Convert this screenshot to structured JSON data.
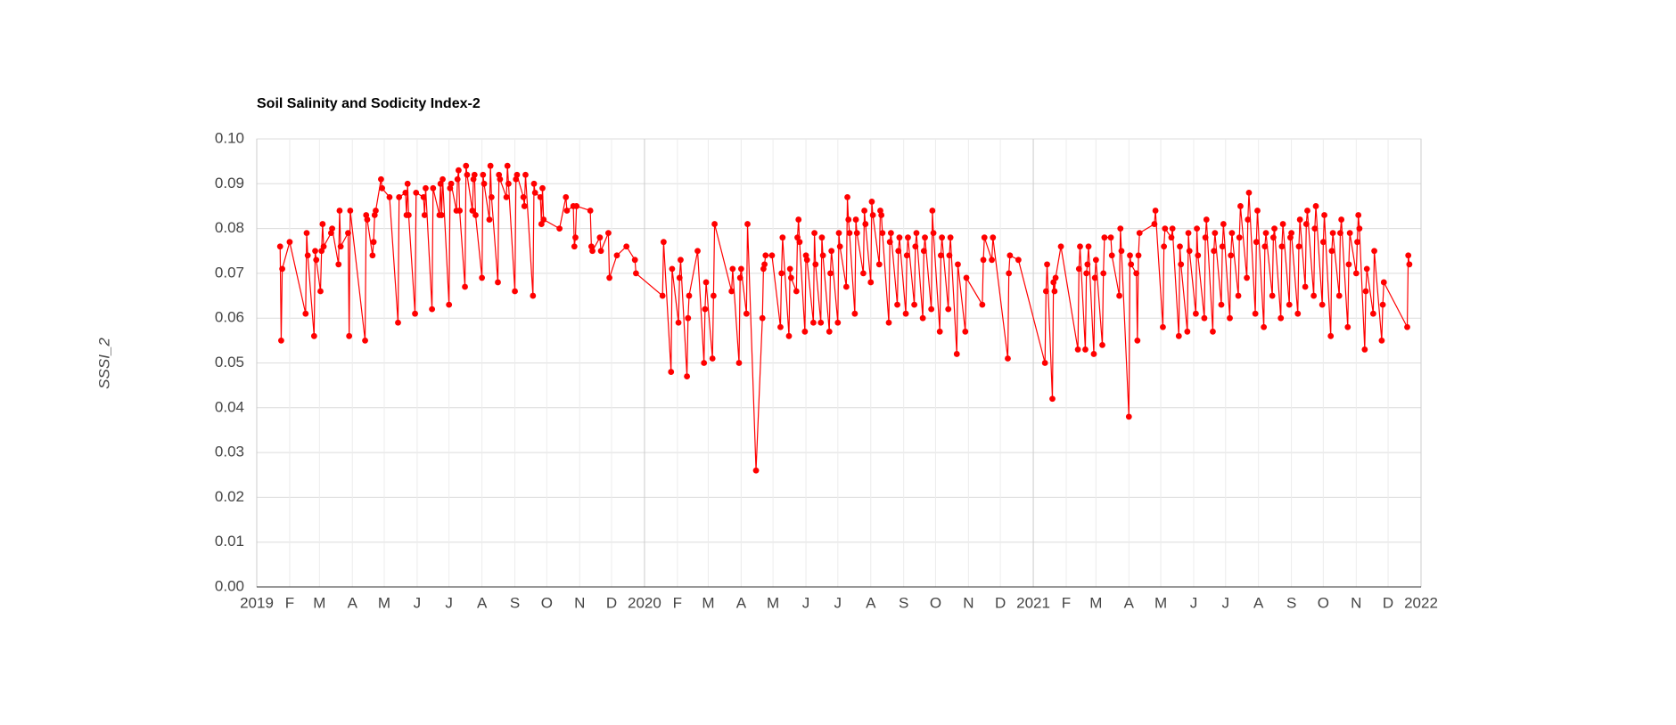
{
  "chart_data": {
    "type": "line",
    "title": "Soil Salinity and Sodicity Index-2",
    "ylabel": "SSSI_2",
    "color": "#ff0000",
    "grid": true,
    "xlim": [
      "2019-01-01",
      "2022-01-01"
    ],
    "xticks": [
      {
        "value": "2019-01-01",
        "label": "2019"
      },
      {
        "value": "2019-02-01",
        "label": "F"
      },
      {
        "value": "2019-03-01",
        "label": "M"
      },
      {
        "value": "2019-04-01",
        "label": "A"
      },
      {
        "value": "2019-05-01",
        "label": "M"
      },
      {
        "value": "2019-06-01",
        "label": "J"
      },
      {
        "value": "2019-07-01",
        "label": "J"
      },
      {
        "value": "2019-08-01",
        "label": "A"
      },
      {
        "value": "2019-09-01",
        "label": "S"
      },
      {
        "value": "2019-10-01",
        "label": "O"
      },
      {
        "value": "2019-11-01",
        "label": "N"
      },
      {
        "value": "2019-12-01",
        "label": "D"
      },
      {
        "value": "2020-01-01",
        "label": "2020"
      },
      {
        "value": "2020-02-01",
        "label": "F"
      },
      {
        "value": "2020-03-01",
        "label": "M"
      },
      {
        "value": "2020-04-01",
        "label": "A"
      },
      {
        "value": "2020-05-01",
        "label": "M"
      },
      {
        "value": "2020-06-01",
        "label": "J"
      },
      {
        "value": "2020-07-01",
        "label": "J"
      },
      {
        "value": "2020-08-01",
        "label": "A"
      },
      {
        "value": "2020-09-01",
        "label": "S"
      },
      {
        "value": "2020-10-01",
        "label": "O"
      },
      {
        "value": "2020-11-01",
        "label": "N"
      },
      {
        "value": "2020-12-01",
        "label": "D"
      },
      {
        "value": "2021-01-01",
        "label": "2021"
      },
      {
        "value": "2021-02-01",
        "label": "F"
      },
      {
        "value": "2021-03-01",
        "label": "M"
      },
      {
        "value": "2021-04-01",
        "label": "A"
      },
      {
        "value": "2021-05-01",
        "label": "M"
      },
      {
        "value": "2021-06-01",
        "label": "J"
      },
      {
        "value": "2021-07-01",
        "label": "J"
      },
      {
        "value": "2021-08-01",
        "label": "A"
      },
      {
        "value": "2021-09-01",
        "label": "S"
      },
      {
        "value": "2021-10-01",
        "label": "O"
      },
      {
        "value": "2021-11-01",
        "label": "N"
      },
      {
        "value": "2021-12-01",
        "label": "D"
      },
      {
        "value": "2022-01-01",
        "label": "2022"
      }
    ],
    "ylim": [
      0,
      0.1
    ],
    "yticks": [
      {
        "value": 0,
        "label": "0.00"
      },
      {
        "value": 0.01,
        "label": "0.01"
      },
      {
        "value": 0.02,
        "label": "0.02"
      },
      {
        "value": 0.03,
        "label": "0.03"
      },
      {
        "value": 0.04,
        "label": "0.04"
      },
      {
        "value": 0.05,
        "label": "0.05"
      },
      {
        "value": 0.06,
        "label": "0.06"
      },
      {
        "value": 0.07,
        "label": "0.07"
      },
      {
        "value": 0.08,
        "label": "0.08"
      },
      {
        "value": 0.09,
        "label": "0.09"
      },
      {
        "value": 0.1,
        "label": "0.10"
      }
    ],
    "x": [
      "2019-01-23",
      "2019-01-24",
      "2019-01-25",
      "2019-02-01",
      "2019-02-16",
      "2019-02-17",
      "2019-02-18",
      "2019-02-24",
      "2019-02-25",
      "2019-02-26",
      "2019-03-02",
      "2019-03-03",
      "2019-03-04",
      "2019-03-05",
      "2019-03-12",
      "2019-03-13",
      "2019-03-19",
      "2019-03-20",
      "2019-03-21",
      "2019-03-28",
      "2019-03-29",
      "2019-03-30",
      "2019-04-13",
      "2019-04-14",
      "2019-04-15",
      "2019-04-20",
      "2019-04-21",
      "2019-04-22",
      "2019-04-23",
      "2019-04-28",
      "2019-04-29",
      "2019-05-06",
      "2019-05-14",
      "2019-05-15",
      "2019-05-21",
      "2019-05-22",
      "2019-05-23",
      "2019-05-24",
      "2019-05-30",
      "2019-05-31",
      "2019-06-07",
      "2019-06-08",
      "2019-06-09",
      "2019-06-15",
      "2019-06-16",
      "2019-06-22",
      "2019-06-23",
      "2019-06-24",
      "2019-06-25",
      "2019-07-01",
      "2019-07-02",
      "2019-07-03",
      "2019-07-08",
      "2019-07-09",
      "2019-07-10",
      "2019-07-11",
      "2019-07-16",
      "2019-07-17",
      "2019-07-18",
      "2019-07-23",
      "2019-07-24",
      "2019-07-25",
      "2019-07-26",
      "2019-08-01",
      "2019-08-02",
      "2019-08-03",
      "2019-08-08",
      "2019-08-09",
      "2019-08-10",
      "2019-08-16",
      "2019-08-17",
      "2019-08-18",
      "2019-08-24",
      "2019-08-25",
      "2019-08-26",
      "2019-09-01",
      "2019-09-02",
      "2019-09-03",
      "2019-09-09",
      "2019-09-10",
      "2019-09-11",
      "2019-09-18",
      "2019-09-19",
      "2019-09-20",
      "2019-09-25",
      "2019-09-26",
      "2019-09-27",
      "2019-09-28",
      "2019-10-13",
      "2019-10-19",
      "2019-10-20",
      "2019-10-26",
      "2019-10-27",
      "2019-10-28",
      "2019-10-29",
      "2019-11-11",
      "2019-11-12",
      "2019-11-13",
      "2019-11-20",
      "2019-11-21",
      "2019-11-28",
      "2019-11-29",
      "2019-12-06",
      "2019-12-15",
      "2019-12-23",
      "2019-12-24",
      "2020-01-18",
      "2020-01-19",
      "2020-01-26",
      "2020-01-27",
      "2020-02-02",
      "2020-02-03",
      "2020-02-04",
      "2020-02-10",
      "2020-02-11",
      "2020-02-12",
      "2020-02-20",
      "2020-02-26",
      "2020-02-27",
      "2020-02-28",
      "2020-03-05",
      "2020-03-06",
      "2020-03-07",
      "2020-03-23",
      "2020-03-24",
      "2020-03-30",
      "2020-03-31",
      "2020-04-01",
      "2020-04-06",
      "2020-04-07",
      "2020-04-15",
      "2020-04-21",
      "2020-04-22",
      "2020-04-23",
      "2020-04-24",
      "2020-04-30",
      "2020-05-08",
      "2020-05-09",
      "2020-05-10",
      "2020-05-16",
      "2020-05-17",
      "2020-05-18",
      "2020-05-23",
      "2020-05-24",
      "2020-05-25",
      "2020-05-26",
      "2020-05-31",
      "2020-06-01",
      "2020-06-02",
      "2020-06-08",
      "2020-06-09",
      "2020-06-10",
      "2020-06-15",
      "2020-06-16",
      "2020-06-17",
      "2020-06-23",
      "2020-06-24",
      "2020-06-25",
      "2020-07-01",
      "2020-07-02",
      "2020-07-03",
      "2020-07-09",
      "2020-07-10",
      "2020-07-11",
      "2020-07-12",
      "2020-07-17",
      "2020-07-18",
      "2020-07-19",
      "2020-07-25",
      "2020-07-26",
      "2020-07-27",
      "2020-08-01",
      "2020-08-02",
      "2020-08-03",
      "2020-08-09",
      "2020-08-10",
      "2020-08-11",
      "2020-08-12",
      "2020-08-18",
      "2020-08-19",
      "2020-08-20",
      "2020-08-26",
      "2020-08-27",
      "2020-08-28",
      "2020-09-03",
      "2020-09-04",
      "2020-09-05",
      "2020-09-11",
      "2020-09-12",
      "2020-09-13",
      "2020-09-19",
      "2020-09-20",
      "2020-09-21",
      "2020-09-27",
      "2020-09-28",
      "2020-09-29",
      "2020-10-05",
      "2020-10-06",
      "2020-10-07",
      "2020-10-13",
      "2020-10-14",
      "2020-10-15",
      "2020-10-21",
      "2020-10-22",
      "2020-10-29",
      "2020-10-30",
      "2020-11-14",
      "2020-11-15",
      "2020-11-16",
      "2020-11-23",
      "2020-11-24",
      "2020-12-08",
      "2020-12-09",
      "2020-12-10",
      "2020-12-18",
      "2021-01-12",
      "2021-01-13",
      "2021-01-14",
      "2021-01-19",
      "2021-01-20",
      "2021-01-21",
      "2021-01-22",
      "2021-01-27",
      "2021-02-12",
      "2021-02-13",
      "2021-02-14",
      "2021-02-19",
      "2021-02-20",
      "2021-02-21",
      "2021-02-22",
      "2021-02-27",
      "2021-02-28",
      "2021-03-01",
      "2021-03-07",
      "2021-03-08",
      "2021-03-09",
      "2021-03-15",
      "2021-03-16",
      "2021-03-23",
      "2021-03-24",
      "2021-03-25",
      "2021-04-01",
      "2021-04-02",
      "2021-04-03",
      "2021-04-08",
      "2021-04-09",
      "2021-04-10",
      "2021-04-11",
      "2021-04-25",
      "2021-04-26",
      "2021-05-03",
      "2021-05-04",
      "2021-05-05",
      "2021-05-11",
      "2021-05-12",
      "2021-05-18",
      "2021-05-19",
      "2021-05-20",
      "2021-05-26",
      "2021-05-27",
      "2021-05-28",
      "2021-06-03",
      "2021-06-04",
      "2021-06-05",
      "2021-06-11",
      "2021-06-12",
      "2021-06-13",
      "2021-06-19",
      "2021-06-20",
      "2021-06-21",
      "2021-06-27",
      "2021-06-28",
      "2021-06-29",
      "2021-07-05",
      "2021-07-06",
      "2021-07-07",
      "2021-07-13",
      "2021-07-14",
      "2021-07-15",
      "2021-07-21",
      "2021-07-22",
      "2021-07-23",
      "2021-07-29",
      "2021-07-30",
      "2021-07-31",
      "2021-08-06",
      "2021-08-07",
      "2021-08-08",
      "2021-08-14",
      "2021-08-15",
      "2021-08-16",
      "2021-08-22",
      "2021-08-23",
      "2021-08-24",
      "2021-08-30",
      "2021-08-31",
      "2021-09-01",
      "2021-09-07",
      "2021-09-08",
      "2021-09-09",
      "2021-09-14",
      "2021-09-15",
      "2021-09-16",
      "2021-09-22",
      "2021-09-23",
      "2021-09-24",
      "2021-09-30",
      "2021-10-01",
      "2021-10-02",
      "2021-10-08",
      "2021-10-09",
      "2021-10-10",
      "2021-10-16",
      "2021-10-17",
      "2021-10-18",
      "2021-10-24",
      "2021-10-25",
      "2021-10-26",
      "2021-11-01",
      "2021-11-02",
      "2021-11-03",
      "2021-11-04",
      "2021-11-09",
      "2021-11-10",
      "2021-11-11",
      "2021-11-17",
      "2021-11-18",
      "2021-11-25",
      "2021-11-26",
      "2021-11-27",
      "2021-12-19",
      "2021-12-20",
      "2021-12-21"
    ],
    "values": [
      0.076,
      0.055,
      0.071,
      0.077,
      0.061,
      0.079,
      0.074,
      0.056,
      0.075,
      0.073,
      0.066,
      0.075,
      0.081,
      0.076,
      0.079,
      0.08,
      0.072,
      0.084,
      0.076,
      0.079,
      0.056,
      0.084,
      0.055,
      0.083,
      0.082,
      0.074,
      0.077,
      0.083,
      0.084,
      0.091,
      0.089,
      0.087,
      0.059,
      0.087,
      0.088,
      0.083,
      0.09,
      0.083,
      0.061,
      0.088,
      0.087,
      0.083,
      0.089,
      0.062,
      0.089,
      0.083,
      0.09,
      0.083,
      0.091,
      0.063,
      0.089,
      0.09,
      0.084,
      0.091,
      0.093,
      0.084,
      0.067,
      0.094,
      0.092,
      0.084,
      0.091,
      0.092,
      0.083,
      0.069,
      0.092,
      0.09,
      0.082,
      0.094,
      0.087,
      0.068,
      0.092,
      0.091,
      0.087,
      0.094,
      0.09,
      0.066,
      0.091,
      0.092,
      0.087,
      0.085,
      0.092,
      0.065,
      0.09,
      0.088,
      0.087,
      0.081,
      0.089,
      0.082,
      0.08,
      0.087,
      0.084,
      0.085,
      0.076,
      0.078,
      0.085,
      0.084,
      0.076,
      0.075,
      0.078,
      0.075,
      0.079,
      0.069,
      0.074,
      0.076,
      0.073,
      0.07,
      0.065,
      0.077,
      0.048,
      0.071,
      0.059,
      0.069,
      0.073,
      0.047,
      0.06,
      0.065,
      0.075,
      0.05,
      0.062,
      0.068,
      0.051,
      0.065,
      0.081,
      0.066,
      0.071,
      0.05,
      0.069,
      0.071,
      0.061,
      0.081,
      0.026,
      0.06,
      0.071,
      0.072,
      0.074,
      0.074,
      0.058,
      0.07,
      0.078,
      0.056,
      0.071,
      0.069,
      0.066,
      0.078,
      0.082,
      0.077,
      0.057,
      0.074,
      0.073,
      0.059,
      0.079,
      0.072,
      0.059,
      0.078,
      0.074,
      0.057,
      0.07,
      0.075,
      0.059,
      0.079,
      0.076,
      0.067,
      0.087,
      0.082,
      0.079,
      0.061,
      0.082,
      0.079,
      0.07,
      0.084,
      0.081,
      0.068,
      0.086,
      0.083,
      0.072,
      0.084,
      0.083,
      0.079,
      0.059,
      0.077,
      0.079,
      0.063,
      0.075,
      0.078,
      0.061,
      0.074,
      0.078,
      0.063,
      0.076,
      0.079,
      0.06,
      0.075,
      0.078,
      0.062,
      0.084,
      0.079,
      0.057,
      0.074,
      0.078,
      0.062,
      0.074,
      0.078,
      0.052,
      0.072,
      0.057,
      0.069,
      0.063,
      0.073,
      0.078,
      0.073,
      0.078,
      0.051,
      0.07,
      0.074,
      0.073,
      0.05,
      0.066,
      0.072,
      0.042,
      0.068,
      0.066,
      0.069,
      0.076,
      0.053,
      0.071,
      0.076,
      0.053,
      0.07,
      0.072,
      0.076,
      0.052,
      0.069,
      0.073,
      0.054,
      0.07,
      0.078,
      0.078,
      0.074,
      0.065,
      0.08,
      0.075,
      0.038,
      0.074,
      0.072,
      0.07,
      0.055,
      0.074,
      0.079,
      0.081,
      0.084,
      0.058,
      0.076,
      0.08,
      0.078,
      0.08,
      0.056,
      0.076,
      0.072,
      0.057,
      0.079,
      0.075,
      0.061,
      0.08,
      0.074,
      0.06,
      0.078,
      0.082,
      0.057,
      0.075,
      0.079,
      0.063,
      0.076,
      0.081,
      0.06,
      0.074,
      0.079,
      0.065,
      0.078,
      0.085,
      0.069,
      0.082,
      0.088,
      0.061,
      0.077,
      0.084,
      0.058,
      0.076,
      0.079,
      0.065,
      0.078,
      0.08,
      0.06,
      0.076,
      0.081,
      0.063,
      0.078,
      0.079,
      0.061,
      0.076,
      0.082,
      0.067,
      0.081,
      0.084,
      0.065,
      0.08,
      0.085,
      0.063,
      0.077,
      0.083,
      0.056,
      0.075,
      0.079,
      0.065,
      0.079,
      0.082,
      0.058,
      0.072,
      0.079,
      0.07,
      0.077,
      0.083,
      0.08,
      0.053,
      0.066,
      0.071,
      0.061,
      0.075,
      0.055,
      0.063,
      0.068,
      0.058,
      0.074,
      0.072
    ]
  }
}
